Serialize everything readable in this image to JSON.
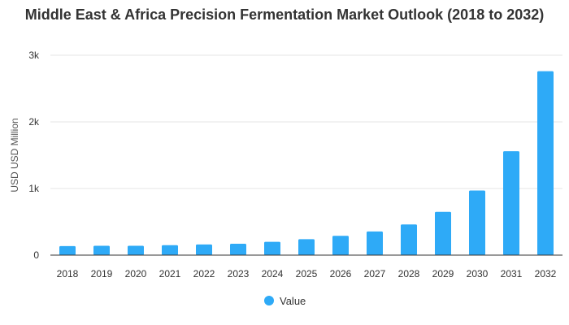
{
  "chart_data": {
    "type": "bar",
    "title": "Middle East & Africa Precision Fermentation Market Outlook (2018 to 2032)",
    "xlabel": "",
    "ylabel": "USD USD Million",
    "categories": [
      "2018",
      "2019",
      "2020",
      "2021",
      "2022",
      "2023",
      "2024",
      "2025",
      "2026",
      "2027",
      "2028",
      "2029",
      "2030",
      "2031",
      "2032"
    ],
    "series": [
      {
        "name": "Value",
        "values": [
          135,
          140,
          140,
          150,
          160,
          170,
          200,
          240,
          290,
          355,
          460,
          650,
          970,
          1560,
          2760
        ]
      }
    ],
    "ylim": [
      0,
      3000
    ],
    "yticks": [
      0,
      1000,
      2000,
      3000
    ],
    "ytick_labels": [
      "0",
      "1k",
      "2k",
      "3k"
    ],
    "grid": true,
    "legend_position": "bottom",
    "colors": {
      "bar": "#2eaaf7",
      "grid": "#e6e6e6",
      "axis": "#333333"
    }
  }
}
